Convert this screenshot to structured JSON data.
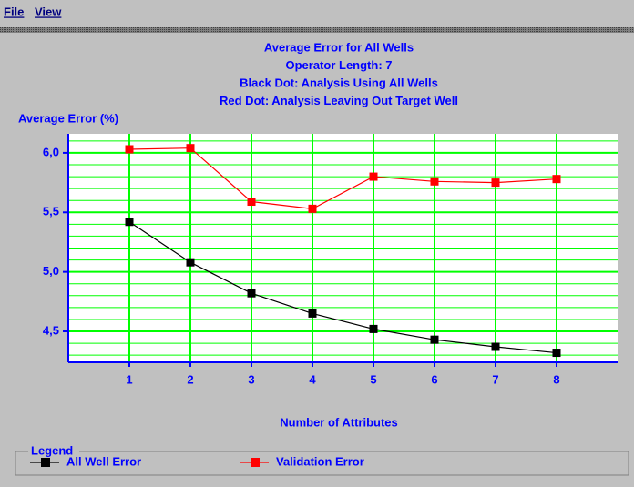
{
  "menu": [
    "File",
    "View"
  ],
  "chart_data": {
    "type": "line",
    "title_lines": [
      "Average Error for All Wells",
      "Operator Length: 7",
      "Black Dot: Analysis Using All Wells",
      "Red Dot: Analysis Leaving Out Target Well"
    ],
    "y_label": "Average Error (%)",
    "x_label": "Number of Attributes",
    "legend_title": "Legend",
    "x": [
      1,
      2,
      3,
      4,
      5,
      6,
      7,
      8
    ],
    "xlim": [
      0,
      9
    ],
    "xticks": [
      1,
      2,
      3,
      4,
      5,
      6,
      7,
      8
    ],
    "ylim": [
      4.24,
      6.16
    ],
    "yticks": [
      {
        "value": 4.5,
        "label": "4,5"
      },
      {
        "value": 5,
        "label": "5,0"
      },
      {
        "value": 5.5,
        "label": "5,5"
      },
      {
        "value": 6,
        "label": "6,0"
      }
    ],
    "minor_yticks": [
      4.3,
      4.4,
      4.6,
      4.7,
      4.8,
      4.9,
      5.1,
      5.2,
      5.3,
      5.4,
      5.6,
      5.7,
      5.8,
      5.9,
      6.1
    ],
    "grid": true,
    "grid_color": "#00ff00",
    "series": [
      {
        "name": "All Well Error",
        "color": "#000000",
        "values": [
          5.42,
          5.08,
          4.82,
          4.65,
          4.52,
          4.43,
          4.37,
          4.32
        ]
      },
      {
        "name": "Validation Error",
        "color": "#ff0000",
        "values": [
          6.03,
          6.04,
          5.59,
          5.53,
          5.8,
          5.76,
          5.75,
          5.78
        ]
      }
    ]
  }
}
